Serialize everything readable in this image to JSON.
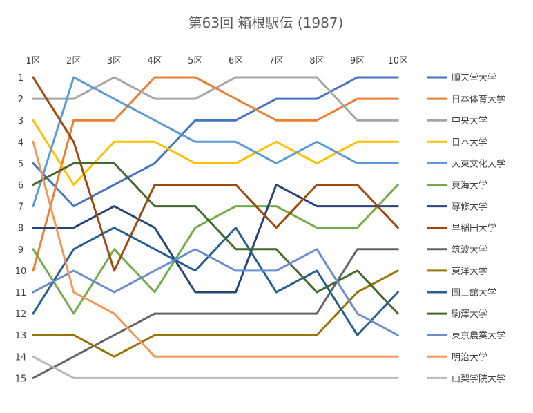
{
  "chart_data": {
    "type": "line",
    "title": "第63回 箱根駅伝 (1987)",
    "xlabel": "",
    "ylabel": "",
    "categories": [
      "1区",
      "2区",
      "3区",
      "4区",
      "5区",
      "6区",
      "7区",
      "8区",
      "9区",
      "10区"
    ],
    "y_ticks": [
      "1",
      "2",
      "3",
      "4",
      "5",
      "6",
      "7",
      "8",
      "9",
      "10",
      "11",
      "12",
      "13",
      "14",
      "15"
    ],
    "ylim": [
      1,
      15
    ],
    "y_reversed": true,
    "grid": false,
    "legend_position": "right",
    "series": [
      {
        "name": "順天堂大学",
        "color": "#4472C4",
        "values": [
          5,
          7,
          6,
          5,
          3,
          3,
          2,
          2,
          1,
          1
        ]
      },
      {
        "name": "日本体育大学",
        "color": "#ED7D31",
        "values": [
          10,
          3,
          3,
          1,
          1,
          2,
          3,
          3,
          2,
          2
        ]
      },
      {
        "name": "中央大学",
        "color": "#A5A5A5",
        "values": [
          2,
          2,
          1,
          2,
          2,
          1,
          1,
          1,
          3,
          3
        ]
      },
      {
        "name": "日本大学",
        "color": "#FFC000",
        "values": [
          3,
          6,
          4,
          4,
          5,
          5,
          4,
          5,
          4,
          4
        ]
      },
      {
        "name": "大東文化大学",
        "color": "#5B9BD5",
        "values": [
          7,
          1,
          2,
          3,
          4,
          4,
          5,
          4,
          5,
          5
        ]
      },
      {
        "name": "東海大学",
        "color": "#70AD47",
        "values": [
          9,
          12,
          9,
          11,
          8,
          7,
          7,
          8,
          8,
          6
        ]
      },
      {
        "name": "専修大学",
        "color": "#264478",
        "values": [
          8,
          8,
          7,
          8,
          11,
          11,
          6,
          7,
          7,
          7
        ]
      },
      {
        "name": "早稲田大学",
        "color": "#9E480E",
        "values": [
          1,
          4,
          10,
          6,
          6,
          6,
          8,
          6,
          6,
          8
        ]
      },
      {
        "name": "筑波大学",
        "color": "#636363",
        "values": [
          15,
          14,
          13,
          12,
          12,
          12,
          12,
          12,
          9,
          9
        ]
      },
      {
        "name": "東洋大学",
        "color": "#997300",
        "values": [
          13,
          13,
          14,
          13,
          13,
          13,
          13,
          13,
          11,
          10
        ]
      },
      {
        "name": "国士舘大学",
        "color": "#255E91",
        "values": [
          12,
          9,
          8,
          9,
          10,
          8,
          11,
          10,
          13,
          11
        ]
      },
      {
        "name": "駒澤大学",
        "color": "#43682B",
        "values": [
          6,
          5,
          5,
          7,
          7,
          9,
          9,
          11,
          10,
          12
        ]
      },
      {
        "name": "東京農業大学",
        "color": "#698ED0",
        "values": [
          11,
          10,
          11,
          10,
          9,
          10,
          10,
          9,
          12,
          13
        ]
      },
      {
        "name": "明治大学",
        "color": "#F1975A",
        "values": [
          4,
          11,
          12,
          14,
          14,
          14,
          14,
          14,
          14,
          14
        ]
      },
      {
        "name": "山梨学院大学",
        "color": "#B7B7B7",
        "values": [
          14,
          15,
          15,
          15,
          15,
          15,
          15,
          15,
          15,
          15
        ]
      }
    ]
  }
}
